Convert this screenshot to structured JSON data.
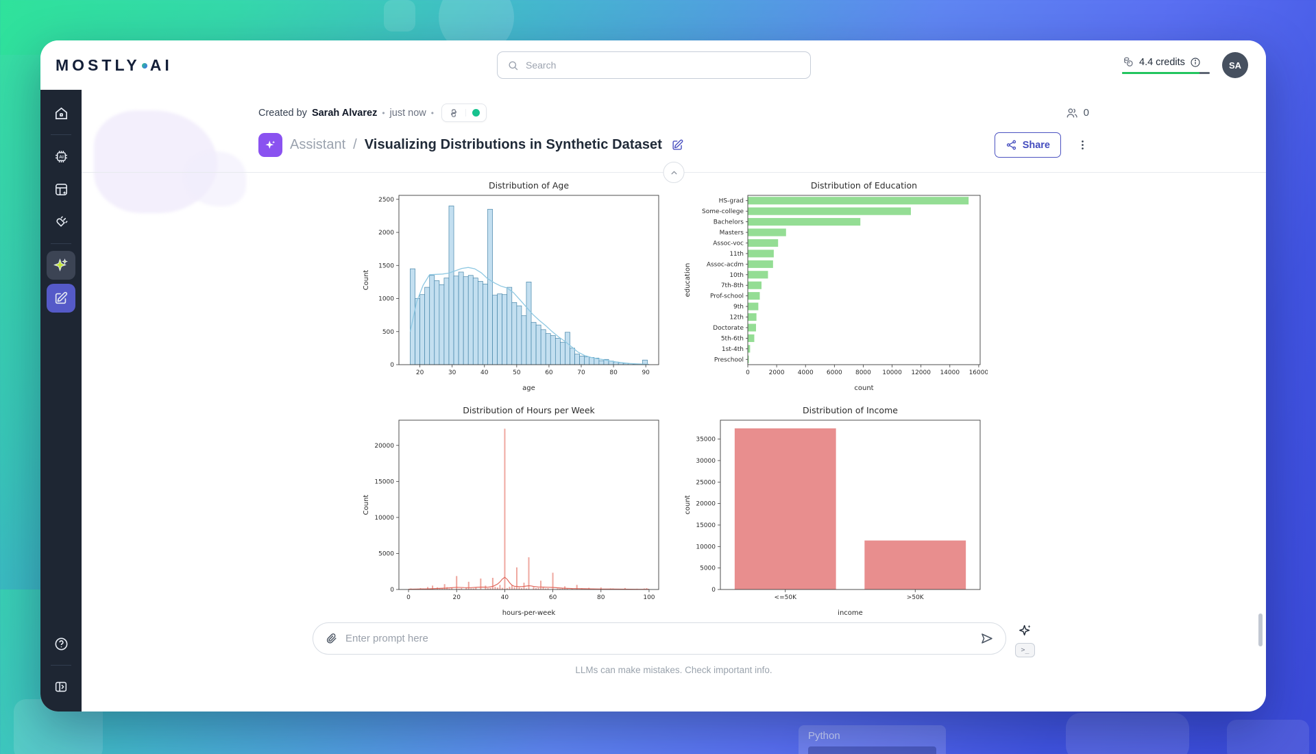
{
  "topbar": {
    "logo_part1": "MOSTLY",
    "logo_part2": "AI",
    "search_placeholder": "Search",
    "credits_label": "4.4 credits",
    "credits_progress_pct": 88,
    "avatar_initials": "SA"
  },
  "header": {
    "created_prefix": "Created by",
    "author": "Sarah Alvarez",
    "bullet": "•",
    "timestamp": "just now",
    "collaborators_count": "0",
    "breadcrumb": "Assistant",
    "breadcrumb_separator": "/",
    "title": "Visualizing Distributions in Synthetic Dataset",
    "share_label": "Share"
  },
  "prompt": {
    "placeholder": "Enter prompt here",
    "terminal_glyph": ">_"
  },
  "footer_note": "LLMs can make mistakes. Check important info.",
  "background_decor": {
    "python_label": "Python"
  },
  "icons": {
    "topbar": [
      "search-icon",
      "credits-coins-icon",
      "info-icon"
    ],
    "sidebar": [
      "home-icon",
      "ai-chip-icon",
      "datasets-icon",
      "connector-plug-icon",
      "assistant-sparkle-icon",
      "editor-pencil-icon",
      "help-icon",
      "collapse-sidebar-icon"
    ],
    "header": [
      "python-icon",
      "status-dot-icon",
      "people-icon",
      "assistant-badge-sparkle-icon",
      "edit-icon",
      "share-icon",
      "kebab-menu-icon",
      "chevron-up-icon"
    ],
    "prompt": [
      "paperclip-icon",
      "send-icon",
      "sparkle-icon",
      "terminal-icon"
    ]
  },
  "colors": {
    "sidebar_bg": "#1e2633",
    "active_sparkle": "#c3e637",
    "accent_indigo": "#555ac8",
    "badge_purple": "#8a52f0",
    "share_indigo": "#434cbe",
    "status_green": "#17c28e",
    "progress_green": "#22c55e"
  },
  "chart_data": [
    {
      "type": "histogram",
      "title": "Distribution of Age",
      "xlabel": "age",
      "ylabel": "Count",
      "xlim": [
        13.5,
        94
      ],
      "ylim": [
        0,
        2560
      ],
      "xticks": [
        20,
        30,
        40,
        50,
        60,
        70,
        80,
        90
      ],
      "yticks": [
        0,
        500,
        1000,
        1500,
        2000,
        2500
      ],
      "bin_start": 17,
      "bin_width": 1.5,
      "values": [
        1450,
        1000,
        1060,
        1170,
        1350,
        1270,
        1210,
        1310,
        2400,
        1340,
        1400,
        1330,
        1350,
        1310,
        1260,
        1220,
        2350,
        1050,
        1070,
        1060,
        1170,
        940,
        890,
        740,
        1250,
        640,
        600,
        530,
        470,
        440,
        400,
        340,
        490,
        250,
        160,
        130,
        120,
        110,
        100,
        60,
        80,
        55,
        40,
        30,
        20,
        15,
        8,
        5,
        70
      ],
      "kde": [
        [
          17,
          500
        ],
        [
          19,
          950
        ],
        [
          21,
          1200
        ],
        [
          23,
          1360
        ],
        [
          25,
          1365
        ],
        [
          27,
          1370
        ],
        [
          29,
          1385
        ],
        [
          31,
          1420
        ],
        [
          33,
          1455
        ],
        [
          35,
          1470
        ],
        [
          37,
          1450
        ],
        [
          39,
          1390
        ],
        [
          41,
          1300
        ],
        [
          43,
          1240
        ],
        [
          45,
          1190
        ],
        [
          47,
          1160
        ],
        [
          49,
          1090
        ],
        [
          51,
          980
        ],
        [
          53,
          870
        ],
        [
          55,
          760
        ],
        [
          57,
          670
        ],
        [
          59,
          590
        ],
        [
          61,
          500
        ],
        [
          63,
          420
        ],
        [
          65,
          350
        ],
        [
          67,
          270
        ],
        [
          69,
          190
        ],
        [
          71,
          140
        ],
        [
          73,
          110
        ],
        [
          75,
          90
        ],
        [
          77,
          75
        ],
        [
          79,
          55
        ],
        [
          81,
          40
        ],
        [
          83,
          28
        ],
        [
          85,
          18
        ],
        [
          87,
          12
        ],
        [
          89,
          8
        ],
        [
          91,
          5
        ]
      ],
      "colors": {
        "fill": "#c3dff0",
        "edge": "#4584a8",
        "kde": "#8ec8e2"
      }
    },
    {
      "type": "barh",
      "title": "Distribution of Education",
      "xlabel": "count",
      "ylabel": "education",
      "xlim": [
        0,
        16100
      ],
      "xticks": [
        0,
        2000,
        4000,
        6000,
        8000,
        10000,
        12000,
        14000,
        16000
      ],
      "categories": [
        "HS-grad",
        "Some-college",
        "Bachelors",
        "Masters",
        "Assoc-voc",
        "11th",
        "Assoc-acdm",
        "10th",
        "7th-8th",
        "Prof-school",
        "9th",
        "12th",
        "Doctorate",
        "5th-6th",
        "1st-4th",
        "Preschool"
      ],
      "values": [
        15300,
        11300,
        7800,
        2650,
        2100,
        1800,
        1750,
        1400,
        950,
        830,
        730,
        600,
        570,
        450,
        160,
        70
      ],
      "colors": {
        "fill": "#94dd94"
      }
    },
    {
      "type": "spikes",
      "title": "Distribution of Hours per Week",
      "xlabel": "hours-per-week",
      "ylabel": "Count",
      "xlim": [
        -4,
        104
      ],
      "ylim": [
        0,
        23500
      ],
      "xticks": [
        0,
        20,
        40,
        60,
        80,
        100
      ],
      "yticks": [
        0,
        5000,
        10000,
        15000,
        20000
      ],
      "points": [
        [
          1,
          120
        ],
        [
          2,
          60
        ],
        [
          3,
          70
        ],
        [
          4,
          90
        ],
        [
          5,
          160
        ],
        [
          6,
          110
        ],
        [
          7,
          80
        ],
        [
          8,
          320
        ],
        [
          9,
          70
        ],
        [
          10,
          520
        ],
        [
          12,
          260
        ],
        [
          13,
          120
        ],
        [
          14,
          110
        ],
        [
          15,
          720
        ],
        [
          16,
          310
        ],
        [
          17,
          90
        ],
        [
          18,
          210
        ],
        [
          20,
          1850
        ],
        [
          21,
          90
        ],
        [
          22,
          160
        ],
        [
          24,
          260
        ],
        [
          25,
          1050
        ],
        [
          26,
          130
        ],
        [
          27,
          110
        ],
        [
          28,
          320
        ],
        [
          30,
          1500
        ],
        [
          32,
          520
        ],
        [
          33,
          160
        ],
        [
          34,
          210
        ],
        [
          35,
          1600
        ],
        [
          36,
          360
        ],
        [
          37,
          260
        ],
        [
          38,
          620
        ],
        [
          39,
          210
        ],
        [
          40,
          22300
        ],
        [
          41,
          160
        ],
        [
          42,
          360
        ],
        [
          43,
          520
        ],
        [
          44,
          310
        ],
        [
          45,
          3050
        ],
        [
          46,
          260
        ],
        [
          47,
          160
        ],
        [
          48,
          920
        ],
        [
          49,
          130
        ],
        [
          50,
          4450
        ],
        [
          52,
          310
        ],
        [
          53,
          160
        ],
        [
          54,
          210
        ],
        [
          55,
          1200
        ],
        [
          56,
          260
        ],
        [
          57,
          110
        ],
        [
          58,
          160
        ],
        [
          60,
          2300
        ],
        [
          62,
          110
        ],
        [
          63,
          90
        ],
        [
          64,
          130
        ],
        [
          65,
          420
        ],
        [
          66,
          110
        ],
        [
          68,
          130
        ],
        [
          70,
          620
        ],
        [
          72,
          160
        ],
        [
          75,
          210
        ],
        [
          77,
          90
        ],
        [
          80,
          260
        ],
        [
          84,
          130
        ],
        [
          85,
          110
        ],
        [
          90,
          190
        ],
        [
          95,
          90
        ],
        [
          98,
          110
        ],
        [
          99,
          160
        ]
      ],
      "kde": [
        [
          0,
          40
        ],
        [
          4,
          60
        ],
        [
          8,
          90
        ],
        [
          12,
          140
        ],
        [
          16,
          200
        ],
        [
          20,
          300
        ],
        [
          23,
          270
        ],
        [
          26,
          260
        ],
        [
          29,
          320
        ],
        [
          31,
          330
        ],
        [
          33,
          310
        ],
        [
          35,
          430
        ],
        [
          37,
          750
        ],
        [
          38,
          1050
        ],
        [
          39,
          1450
        ],
        [
          40,
          1700
        ],
        [
          41,
          1420
        ],
        [
          42,
          950
        ],
        [
          43,
          600
        ],
        [
          44,
          450
        ],
        [
          45,
          420
        ],
        [
          46,
          390
        ],
        [
          47,
          390
        ],
        [
          48,
          430
        ],
        [
          49,
          480
        ],
        [
          50,
          520
        ],
        [
          51,
          490
        ],
        [
          52,
          420
        ],
        [
          54,
          350
        ],
        [
          56,
          330
        ],
        [
          58,
          310
        ],
        [
          60,
          290
        ],
        [
          62,
          240
        ],
        [
          64,
          190
        ],
        [
          66,
          160
        ],
        [
          68,
          130
        ],
        [
          70,
          120
        ],
        [
          73,
          100
        ],
        [
          76,
          85
        ],
        [
          80,
          70
        ],
        [
          84,
          55
        ],
        [
          88,
          45
        ],
        [
          92,
          38
        ],
        [
          96,
          32
        ],
        [
          100,
          28
        ]
      ],
      "colors": {
        "fill": "#f0a8a0",
        "edge": "#e8938a",
        "kde": "#e0685c"
      }
    },
    {
      "type": "bar",
      "title": "Distribution of Income",
      "xlabel": "income",
      "ylabel": "count",
      "ylim": [
        0,
        39400
      ],
      "yticks": [
        0,
        5000,
        10000,
        15000,
        20000,
        25000,
        30000,
        35000
      ],
      "categories": [
        "<=50K",
        ">50K"
      ],
      "values": [
        37500,
        11400
      ],
      "colors": {
        "fill": "#e88e8e"
      }
    }
  ]
}
